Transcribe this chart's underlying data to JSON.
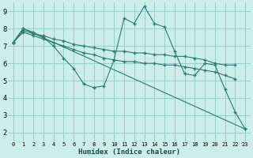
{
  "xlabel": "Humidex (Indice chaleur)",
  "bg_color": "#cceee8",
  "grid_color": "#99cccc",
  "line_color": "#2d7a6e",
  "xlim": [
    -0.5,
    23.5
  ],
  "ylim": [
    1.5,
    9.5
  ],
  "xticks": [
    0,
    1,
    2,
    3,
    4,
    5,
    6,
    7,
    8,
    9,
    10,
    11,
    12,
    13,
    14,
    15,
    16,
    17,
    18,
    19,
    20,
    21,
    22,
    23
  ],
  "yticks": [
    2,
    3,
    4,
    5,
    6,
    7,
    8,
    9
  ],
  "series": [
    {
      "x": [
        0,
        1,
        2,
        3,
        4,
        5,
        6,
        7,
        8,
        9,
        10,
        11,
        12,
        13,
        14,
        15,
        16,
        17,
        18,
        19,
        20,
        21,
        22,
        23
      ],
      "y": [
        7.2,
        8.0,
        7.8,
        7.5,
        7.0,
        6.3,
        5.7,
        4.8,
        4.6,
        4.7,
        6.2,
        8.6,
        8.3,
        9.3,
        8.3,
        8.1,
        6.7,
        5.4,
        5.3,
        6.0,
        5.9,
        4.5,
        3.2,
        2.2
      ]
    },
    {
      "x": [
        0,
        1,
        2,
        3,
        4,
        5,
        6,
        7,
        8,
        9,
        10,
        11,
        12,
        13,
        14,
        15,
        16,
        17,
        18,
        19,
        20,
        21,
        22
      ],
      "y": [
        7.2,
        7.9,
        7.7,
        7.6,
        7.4,
        7.3,
        7.1,
        7.0,
        6.9,
        6.8,
        6.7,
        6.7,
        6.6,
        6.6,
        6.5,
        6.5,
        6.4,
        6.4,
        6.3,
        6.2,
        6.0,
        5.9,
        5.9
      ]
    },
    {
      "x": [
        0,
        1,
        2,
        3,
        4,
        5,
        6,
        7,
        8,
        9,
        10,
        11,
        12,
        13,
        14,
        15,
        16,
        17,
        18,
        19,
        20,
        21,
        22
      ],
      "y": [
        7.2,
        7.8,
        7.6,
        7.4,
        7.2,
        7.0,
        6.8,
        6.6,
        6.5,
        6.3,
        6.2,
        6.1,
        6.1,
        6.0,
        6.0,
        5.9,
        5.9,
        5.8,
        5.7,
        5.6,
        5.5,
        5.3,
        5.1
      ]
    },
    {
      "x": [
        0,
        1,
        23
      ],
      "y": [
        7.2,
        8.0,
        2.2
      ]
    }
  ]
}
